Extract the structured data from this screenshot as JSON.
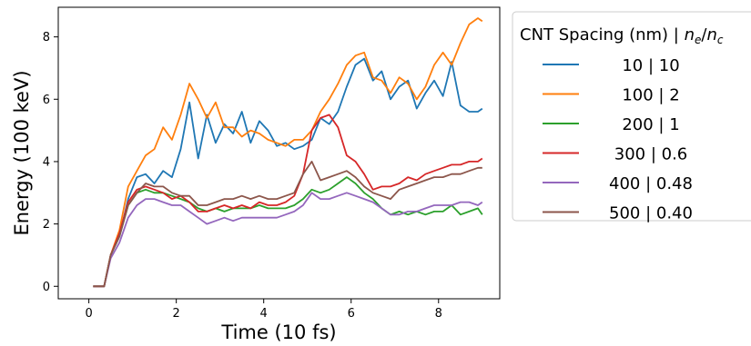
{
  "chart_data": {
    "type": "line",
    "xlabel": "Time (10 fs)",
    "ylabel": "Energy (100 keV)",
    "xlim": [
      -0.7,
      9.4
    ],
    "ylim": [
      -0.4,
      8.95
    ],
    "xticks": [
      "0",
      "2",
      "4",
      "6",
      "8"
    ],
    "xtick_values": [
      0,
      2,
      4,
      6,
      8
    ],
    "yticks": [
      "0",
      "2",
      "4",
      "6",
      "8"
    ],
    "ytick_values": [
      0,
      2,
      4,
      6,
      8
    ],
    "grid": false,
    "legend": {
      "placement": "outside-right-top",
      "title_text": "CNT Spacing (nm) | ",
      "title_math_num": "n",
      "title_math_num_sub": "e",
      "title_math_sep": "/",
      "title_math_den": "n",
      "title_math_den_sub": "c"
    },
    "series": [
      {
        "name": "10 | 10",
        "color": "#1f77b4",
        "x": [
          0.1,
          0.35,
          0.5,
          0.7,
          0.9,
          1.1,
          1.3,
          1.5,
          1.7,
          1.9,
          2.1,
          2.3,
          2.5,
          2.7,
          2.9,
          3.1,
          3.3,
          3.5,
          3.7,
          3.9,
          4.1,
          4.3,
          4.5,
          4.7,
          4.9,
          5.1,
          5.3,
          5.5,
          5.7,
          5.9,
          6.1,
          6.3,
          6.5,
          6.7,
          6.9,
          7.1,
          7.3,
          7.5,
          7.7,
          7.9,
          8.1,
          8.3,
          8.5,
          8.7,
          8.9,
          9.0
        ],
        "y": [
          0,
          0,
          1.0,
          1.6,
          2.8,
          3.5,
          3.6,
          3.3,
          3.7,
          3.5,
          4.4,
          5.9,
          4.1,
          5.5,
          4.6,
          5.2,
          4.9,
          5.6,
          4.6,
          5.3,
          5.0,
          4.5,
          4.6,
          4.4,
          4.5,
          4.7,
          5.4,
          5.2,
          5.6,
          6.4,
          7.1,
          7.3,
          6.6,
          6.9,
          6.0,
          6.4,
          6.6,
          5.7,
          6.2,
          6.6,
          6.1,
          7.2,
          5.8,
          5.6,
          5.6,
          5.7
        ]
      },
      {
        "name": "100 | 2",
        "color": "#ff7f0e",
        "x": [
          0.1,
          0.35,
          0.5,
          0.7,
          0.9,
          1.1,
          1.3,
          1.5,
          1.7,
          1.9,
          2.1,
          2.3,
          2.5,
          2.7,
          2.9,
          3.1,
          3.3,
          3.5,
          3.7,
          3.9,
          4.1,
          4.3,
          4.5,
          4.7,
          4.9,
          5.1,
          5.3,
          5.5,
          5.7,
          5.9,
          6.1,
          6.3,
          6.5,
          6.7,
          6.9,
          7.1,
          7.3,
          7.5,
          7.7,
          7.9,
          8.1,
          8.3,
          8.5,
          8.7,
          8.9,
          9.0
        ],
        "y": [
          0,
          0,
          1.0,
          1.8,
          3.2,
          3.7,
          4.2,
          4.4,
          5.1,
          4.7,
          5.5,
          6.5,
          6.0,
          5.4,
          5.9,
          5.1,
          5.1,
          4.8,
          5.0,
          4.9,
          4.7,
          4.6,
          4.5,
          4.7,
          4.7,
          5.0,
          5.6,
          6.0,
          6.5,
          7.1,
          7.4,
          7.5,
          6.7,
          6.6,
          6.2,
          6.7,
          6.5,
          6.0,
          6.4,
          7.1,
          7.5,
          7.1,
          7.8,
          8.4,
          8.6,
          8.5
        ]
      },
      {
        "name": "200 | 1",
        "color": "#2ca02c",
        "x": [
          0.1,
          0.35,
          0.5,
          0.7,
          0.9,
          1.1,
          1.3,
          1.5,
          1.7,
          1.9,
          2.1,
          2.3,
          2.5,
          2.7,
          2.9,
          3.1,
          3.3,
          3.5,
          3.7,
          3.9,
          4.1,
          4.3,
          4.5,
          4.7,
          4.9,
          5.1,
          5.3,
          5.5,
          5.7,
          5.9,
          6.1,
          6.3,
          6.5,
          6.7,
          6.9,
          7.1,
          7.3,
          7.5,
          7.7,
          7.9,
          8.1,
          8.3,
          8.5,
          8.7,
          8.9,
          9.0
        ],
        "y": [
          0,
          0,
          1.0,
          1.6,
          2.6,
          3.0,
          3.1,
          3.0,
          3.0,
          2.9,
          2.8,
          2.7,
          2.5,
          2.4,
          2.5,
          2.4,
          2.5,
          2.5,
          2.5,
          2.6,
          2.5,
          2.5,
          2.5,
          2.6,
          2.8,
          3.1,
          3.0,
          3.1,
          3.3,
          3.5,
          3.3,
          3.0,
          2.8,
          2.5,
          2.3,
          2.4,
          2.3,
          2.4,
          2.3,
          2.4,
          2.4,
          2.6,
          2.3,
          2.4,
          2.5,
          2.3
        ]
      },
      {
        "name": "300 | 0.6",
        "color": "#d62728",
        "x": [
          0.1,
          0.35,
          0.5,
          0.7,
          0.9,
          1.1,
          1.3,
          1.5,
          1.7,
          1.9,
          2.1,
          2.3,
          2.5,
          2.7,
          2.9,
          3.1,
          3.3,
          3.5,
          3.7,
          3.9,
          4.1,
          4.3,
          4.5,
          4.7,
          4.9,
          5.1,
          5.3,
          5.5,
          5.7,
          5.9,
          6.1,
          6.3,
          6.5,
          6.7,
          6.9,
          7.1,
          7.3,
          7.5,
          7.7,
          7.9,
          8.1,
          8.3,
          8.5,
          8.7,
          8.9,
          9.0
        ],
        "y": [
          0,
          0,
          1.0,
          1.7,
          2.7,
          3.1,
          3.2,
          3.1,
          3.0,
          2.8,
          2.9,
          2.7,
          2.4,
          2.4,
          2.5,
          2.6,
          2.5,
          2.6,
          2.5,
          2.7,
          2.6,
          2.6,
          2.7,
          2.9,
          3.6,
          5.0,
          5.4,
          5.5,
          5.1,
          4.2,
          4.0,
          3.6,
          3.1,
          3.2,
          3.2,
          3.3,
          3.5,
          3.4,
          3.6,
          3.7,
          3.8,
          3.9,
          3.9,
          4.0,
          4.0,
          4.1
        ]
      },
      {
        "name": "400 | 0.48",
        "color": "#9467bd",
        "x": [
          0.1,
          0.35,
          0.5,
          0.7,
          0.9,
          1.1,
          1.3,
          1.5,
          1.7,
          1.9,
          2.1,
          2.3,
          2.5,
          2.7,
          2.9,
          3.1,
          3.3,
          3.5,
          3.7,
          3.9,
          4.1,
          4.3,
          4.5,
          4.7,
          4.9,
          5.1,
          5.3,
          5.5,
          5.7,
          5.9,
          6.1,
          6.3,
          6.5,
          6.7,
          6.9,
          7.1,
          7.3,
          7.5,
          7.7,
          7.9,
          8.1,
          8.3,
          8.5,
          8.7,
          8.9,
          9.0
        ],
        "y": [
          0,
          0,
          0.9,
          1.4,
          2.2,
          2.6,
          2.8,
          2.8,
          2.7,
          2.6,
          2.6,
          2.4,
          2.2,
          2.0,
          2.1,
          2.2,
          2.1,
          2.2,
          2.2,
          2.2,
          2.2,
          2.2,
          2.3,
          2.4,
          2.6,
          3.0,
          2.8,
          2.8,
          2.9,
          3.0,
          2.9,
          2.8,
          2.7,
          2.5,
          2.3,
          2.3,
          2.4,
          2.4,
          2.5,
          2.6,
          2.6,
          2.6,
          2.7,
          2.7,
          2.6,
          2.7
        ]
      },
      {
        "name": "500 | 0.40",
        "color": "#8c564b",
        "x": [
          0.1,
          0.35,
          0.5,
          0.7,
          0.9,
          1.1,
          1.3,
          1.5,
          1.7,
          1.9,
          2.1,
          2.3,
          2.5,
          2.7,
          2.9,
          3.1,
          3.3,
          3.5,
          3.7,
          3.9,
          4.1,
          4.3,
          4.5,
          4.7,
          4.9,
          5.1,
          5.3,
          5.5,
          5.7,
          5.9,
          6.1,
          6.3,
          6.5,
          6.7,
          6.9,
          7.1,
          7.3,
          7.5,
          7.7,
          7.9,
          8.1,
          8.3,
          8.5,
          8.7,
          8.9,
          9.0
        ],
        "y": [
          0,
          0,
          1.0,
          1.6,
          2.6,
          3.0,
          3.3,
          3.2,
          3.2,
          3.0,
          2.9,
          2.9,
          2.6,
          2.6,
          2.7,
          2.8,
          2.8,
          2.9,
          2.8,
          2.9,
          2.8,
          2.8,
          2.9,
          3.0,
          3.6,
          4.0,
          3.4,
          3.5,
          3.6,
          3.7,
          3.5,
          3.2,
          3.0,
          2.9,
          2.8,
          3.1,
          3.2,
          3.3,
          3.4,
          3.5,
          3.5,
          3.6,
          3.6,
          3.7,
          3.8,
          3.8
        ]
      }
    ]
  }
}
